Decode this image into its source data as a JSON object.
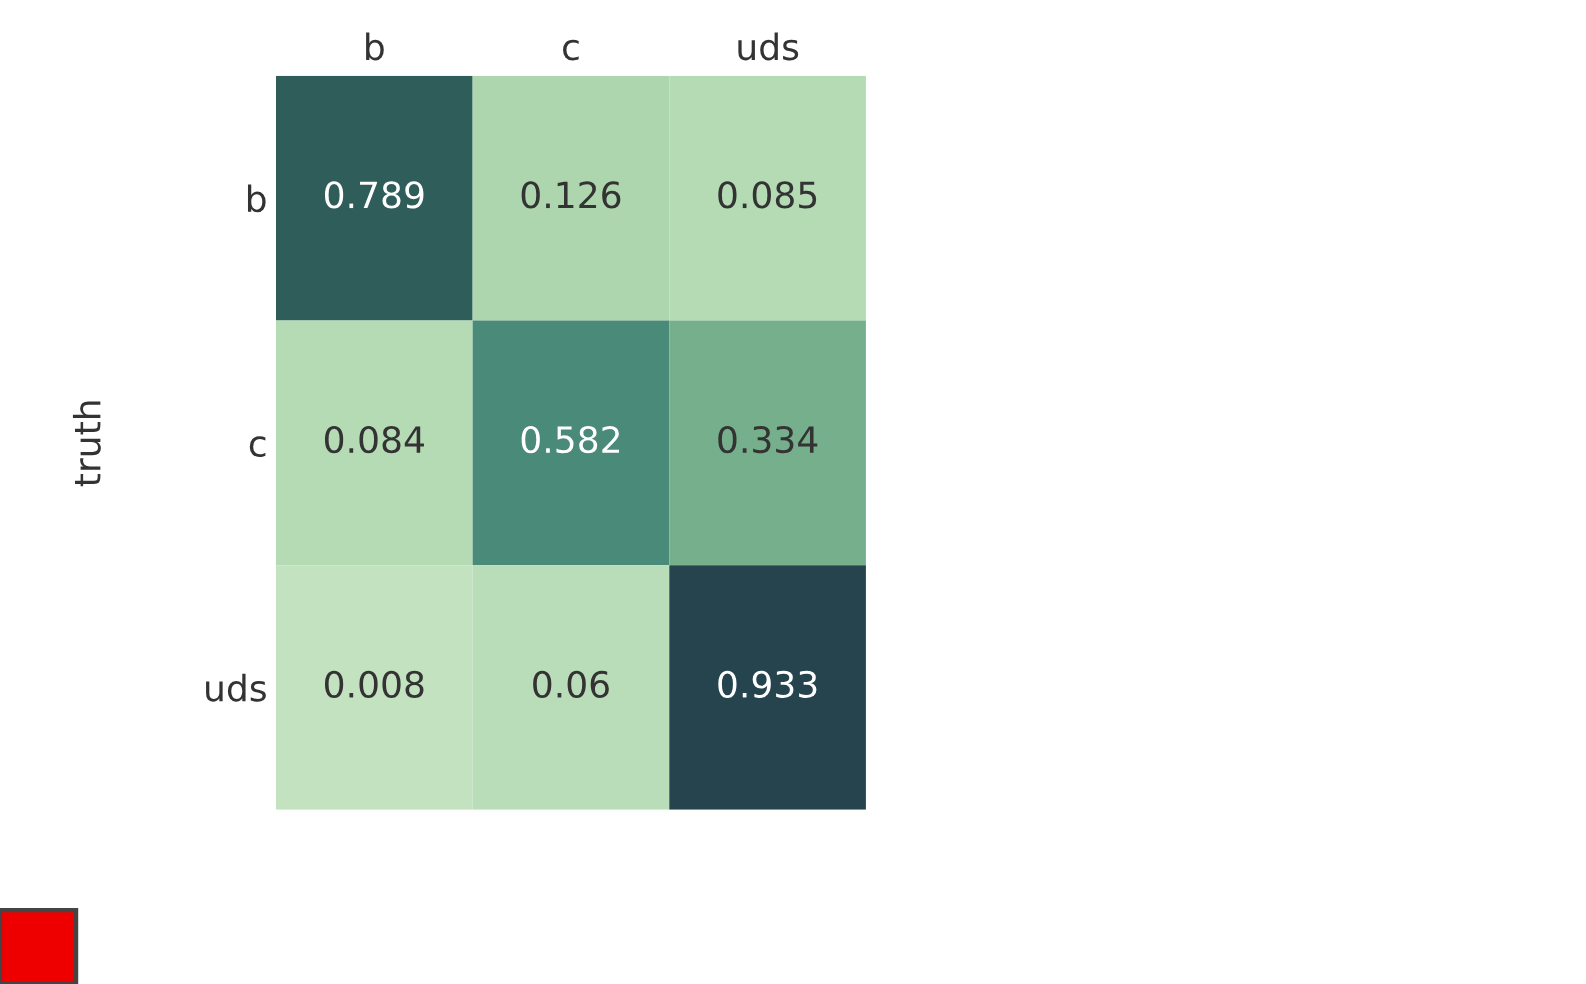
{
  "chart_data": {
    "type": "heatmap",
    "ylabel": "truth",
    "categories": [
      "b",
      "c",
      "uds"
    ],
    "y_categories": [
      "b",
      "c",
      "uds"
    ],
    "cells": [
      [
        0.789,
        0.126,
        0.085
      ],
      [
        0.084,
        0.582,
        0.334
      ],
      [
        0.008,
        0.06,
        0.933
      ]
    ],
    "data_labels": true,
    "grid": false
  }
}
